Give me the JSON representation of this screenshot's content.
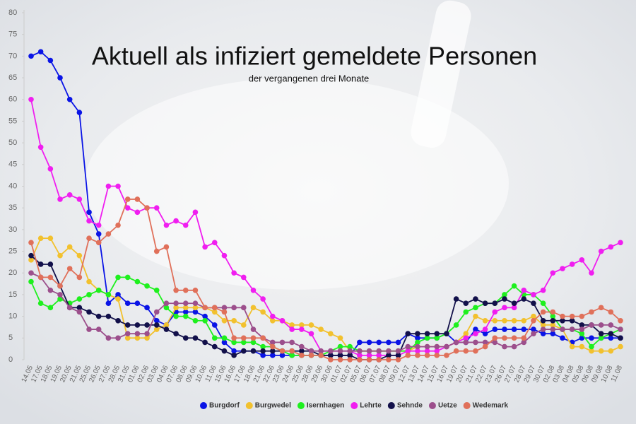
{
  "chart_data": {
    "type": "line",
    "title": "Aktuell als infiziert gemeldete Personen",
    "subtitle": "der vergangenen drei Monate",
    "categories": [
      "14.05",
      "17.05",
      "18.05",
      "19.05",
      "20.05",
      "21.05",
      "25.05",
      "26.05",
      "27.05",
      "28.05",
      "31.05",
      "01.06",
      "02.06",
      "03.06",
      "04.06",
      "07.06",
      "08.06",
      "09.06",
      "10.06",
      "11.06",
      "15.06",
      "16.06",
      "17.06",
      "18.06",
      "21.06",
      "22.06",
      "23.06",
      "24.06",
      "25.06",
      "28.06",
      "29.06",
      "30.06",
      "01.07",
      "02.07",
      "05.07",
      "06.07",
      "07.07",
      "08.07",
      "09.07",
      "12.07",
      "13.07",
      "14.07",
      "15.07",
      "16.07",
      "19.07",
      "20.07",
      "21.07",
      "22.07",
      "23.07",
      "26.07",
      "27.07",
      "28.07",
      "29.07",
      "30.07",
      "02.08",
      "03.08",
      "04.08",
      "05.08",
      "06.08",
      "09.08",
      "10.08",
      "11.08"
    ],
    "ylim": [
      0,
      80
    ],
    "yticks": [
      0,
      5,
      10,
      15,
      20,
      25,
      30,
      35,
      40,
      45,
      50,
      55,
      60,
      65,
      70,
      75,
      80
    ],
    "series": [
      {
        "name": "Burgdorf",
        "color": "#0a14e6",
        "values": [
          70,
          71,
          69,
          65,
          60,
          57,
          34,
          29,
          13,
          15,
          13,
          13,
          12,
          9,
          8,
          11,
          11,
          11,
          10,
          8,
          4,
          2,
          2,
          2,
          1,
          1,
          1,
          1,
          1,
          1,
          1,
          1,
          1,
          1,
          4,
          4,
          4,
          4,
          4,
          6,
          5,
          5,
          5,
          6,
          4,
          4,
          7,
          6,
          7,
          7,
          7,
          7,
          7,
          6,
          6,
          5,
          4,
          5,
          5,
          5,
          5,
          5
        ]
      },
      {
        "name": "Burgwedel",
        "color": "#f2c12e",
        "values": [
          23,
          28,
          28,
          24,
          26,
          24,
          18,
          16,
          15,
          14,
          5,
          5,
          5,
          7,
          8,
          12,
          12,
          12,
          12,
          11,
          9,
          9,
          8,
          12,
          11,
          9,
          9,
          8,
          8,
          8,
          7,
          6,
          5,
          2,
          2,
          2,
          2,
          2,
          2,
          2,
          3,
          3,
          3,
          3,
          4,
          6,
          10,
          9,
          9,
          9,
          9,
          9,
          10,
          8,
          8,
          7,
          3,
          3,
          2,
          2,
          2,
          3
        ]
      },
      {
        "name": "Isernhagen",
        "color": "#1ef01e",
        "values": [
          18,
          13,
          12,
          14,
          13,
          14,
          15,
          16,
          15,
          19,
          19,
          18,
          17,
          16,
          12,
          10,
          10,
          9,
          9,
          5,
          5,
          4,
          4,
          4,
          3,
          3,
          2,
          1,
          1,
          1,
          1,
          2,
          3,
          3,
          2,
          2,
          2,
          2,
          2,
          2,
          4,
          5,
          5,
          6,
          8,
          11,
          12,
          13,
          13,
          15,
          17,
          15,
          15,
          13,
          10,
          7,
          7,
          6,
          3,
          5,
          6,
          7
        ]
      },
      {
        "name": "Lehrte",
        "color": "#f01ef0",
        "values": [
          60,
          49,
          44,
          37,
          38,
          37,
          32,
          31,
          40,
          40,
          35,
          34,
          35,
          35,
          31,
          32,
          31,
          34,
          26,
          27,
          24,
          20,
          19,
          16,
          14,
          10,
          9,
          7,
          7,
          6,
          2,
          2,
          2,
          2,
          1,
          1,
          1,
          1,
          1,
          2,
          2,
          2,
          2,
          3,
          4,
          5,
          6,
          7,
          11,
          12,
          12,
          16,
          15,
          16,
          20,
          21,
          22,
          23,
          20,
          25,
          26,
          27
        ]
      },
      {
        "name": "Sehnde",
        "color": "#12104a",
        "values": [
          24,
          22,
          22,
          17,
          12,
          12,
          11,
          10,
          10,
          9,
          8,
          8,
          8,
          8,
          7,
          6,
          5,
          5,
          4,
          3,
          2,
          1,
          2,
          2,
          2,
          2,
          2,
          2,
          2,
          2,
          1,
          1,
          1,
          1,
          0,
          0,
          0,
          1,
          1,
          6,
          6,
          6,
          6,
          6,
          14,
          13,
          14,
          13,
          13,
          14,
          13,
          14,
          13,
          9,
          9,
          9,
          9,
          8,
          8,
          6,
          6,
          5
        ]
      },
      {
        "name": "Uetze",
        "color": "#9c4f8c",
        "values": [
          20,
          19,
          16,
          15,
          12,
          11,
          7,
          7,
          5,
          5,
          6,
          6,
          6,
          11,
          13,
          13,
          13,
          13,
          12,
          12,
          12,
          12,
          12,
          7,
          5,
          4,
          4,
          4,
          3,
          2,
          2,
          2,
          2,
          2,
          2,
          2,
          2,
          2,
          2,
          3,
          3,
          3,
          3,
          3,
          4,
          4,
          4,
          4,
          4,
          3,
          3,
          4,
          6,
          7,
          7,
          7,
          7,
          7,
          8,
          8,
          8,
          7
        ]
      },
      {
        "name": "Wedemark",
        "color": "#e0705a",
        "values": [
          27,
          19,
          19,
          17,
          21,
          19,
          28,
          27,
          29,
          31,
          37,
          37,
          35,
          25,
          26,
          16,
          16,
          16,
          12,
          12,
          11,
          5,
          5,
          5,
          5,
          3,
          2,
          2,
          1,
          1,
          1,
          0,
          0,
          0,
          0,
          0,
          0,
          0,
          0,
          1,
          1,
          1,
          1,
          1,
          2,
          2,
          2,
          3,
          5,
          5,
          5,
          5,
          9,
          11,
          11,
          10,
          10,
          10,
          11,
          12,
          11,
          9
        ]
      }
    ]
  }
}
